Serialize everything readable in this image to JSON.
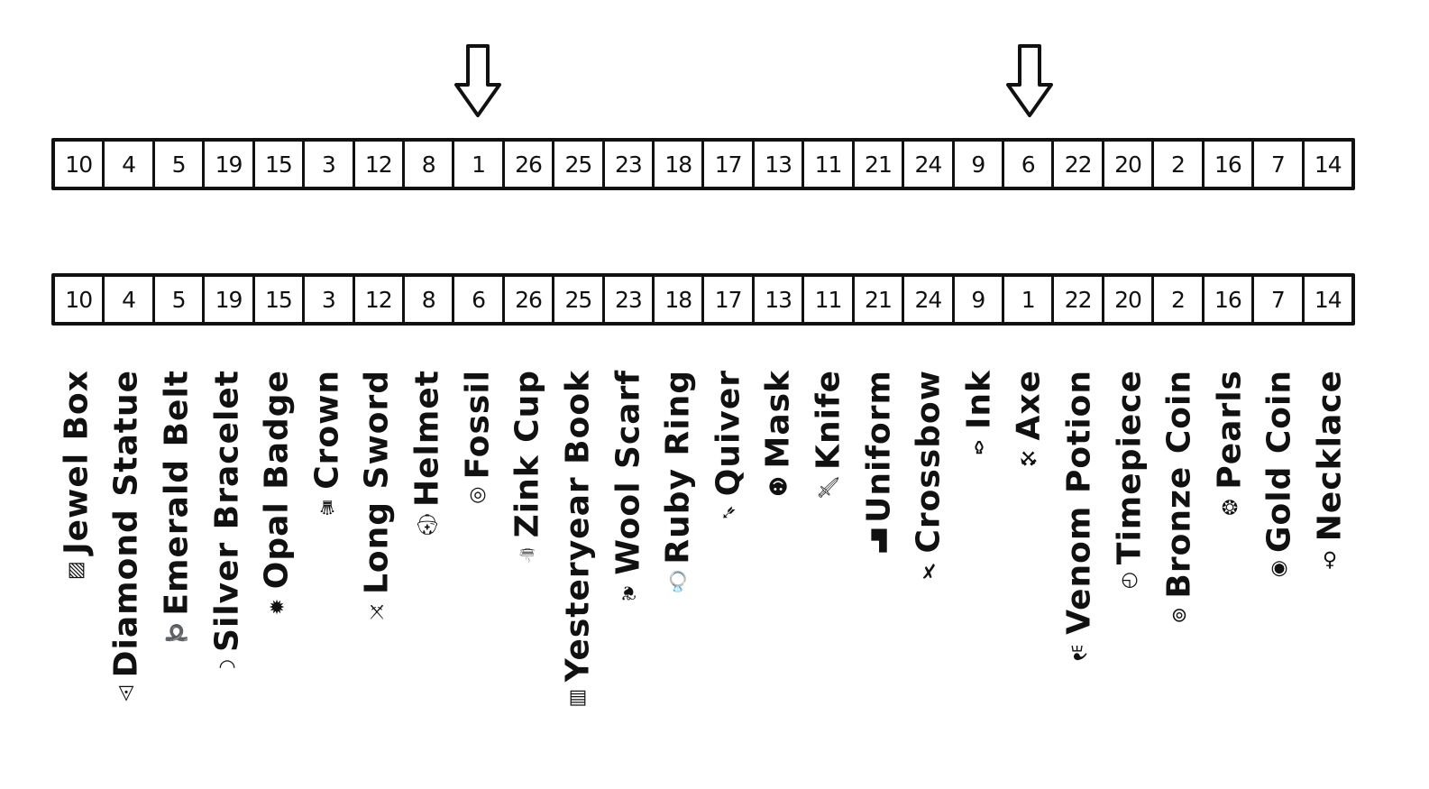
{
  "top_row": [
    "10",
    "4",
    "5",
    "19",
    "15",
    "3",
    "12",
    "8",
    "1",
    "26",
    "25",
    "23",
    "18",
    "17",
    "13",
    "11",
    "21",
    "24",
    "9",
    "6",
    "22",
    "20",
    "2",
    "16",
    "7",
    "14"
  ],
  "bottom_row": [
    "10",
    "4",
    "5",
    "19",
    "15",
    "3",
    "12",
    "8",
    "6",
    "26",
    "25",
    "23",
    "18",
    "17",
    "13",
    "11",
    "21",
    "24",
    "9",
    "1",
    "22",
    "20",
    "2",
    "16",
    "7",
    "14"
  ],
  "arrow_indices": [
    8,
    19
  ],
  "items": [
    {
      "label": "Jewel Box",
      "icon": "▧"
    },
    {
      "label": "Diamond Statue",
      "icon": "◬"
    },
    {
      "label": "Emerald Belt",
      "icon": "➰"
    },
    {
      "label": "Silver Bracelet",
      "icon": "◡"
    },
    {
      "label": "Opal Badge",
      "icon": "✹"
    },
    {
      "label": "Crown",
      "icon": "♛"
    },
    {
      "label": "Long Sword",
      "icon": "⚔"
    },
    {
      "label": "Helmet",
      "icon": "⛑"
    },
    {
      "label": "Fossil",
      "icon": "◎"
    },
    {
      "label": "Zink Cup",
      "icon": "☕"
    },
    {
      "label": "Yesteryear Book",
      "icon": "▤"
    },
    {
      "label": "Wool Scarf",
      "icon": "❦"
    },
    {
      "label": "Ruby Ring",
      "icon": "💍"
    },
    {
      "label": "Quiver",
      "icon": "➶"
    },
    {
      "label": "Mask",
      "icon": "☻"
    },
    {
      "label": "Knife",
      "icon": "🗡"
    },
    {
      "label": "Uniform",
      "icon": "▙"
    },
    {
      "label": "Crossbow",
      "icon": "✗"
    },
    {
      "label": "Ink",
      "icon": "⚱"
    },
    {
      "label": "Axe",
      "icon": "⚒"
    },
    {
      "label": "Venom Potion",
      "icon": "⚗"
    },
    {
      "label": "Timepiece",
      "icon": "◷"
    },
    {
      "label": "Bronze Coin",
      "icon": "⊚"
    },
    {
      "label": "Pearls",
      "icon": "❂"
    },
    {
      "label": "Gold Coin",
      "icon": "◉"
    },
    {
      "label": "Necklace",
      "icon": "♁"
    }
  ]
}
